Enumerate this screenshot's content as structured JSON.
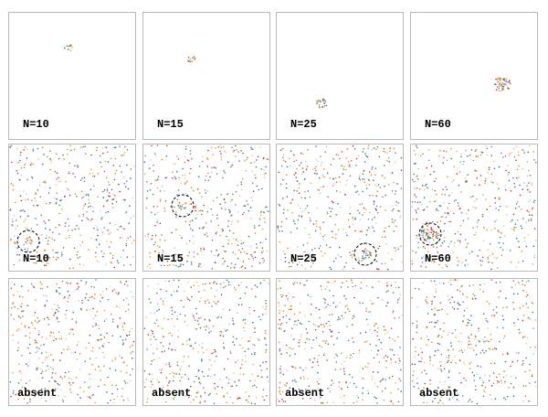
{
  "panels": [
    [
      "N=10",
      "N=15",
      "N=25",
      "N=60"
    ],
    [
      "N=10",
      "N=15",
      "N=25",
      "N=60"
    ],
    [
      "absent",
      "absent",
      "absent",
      "absent"
    ]
  ]
}
